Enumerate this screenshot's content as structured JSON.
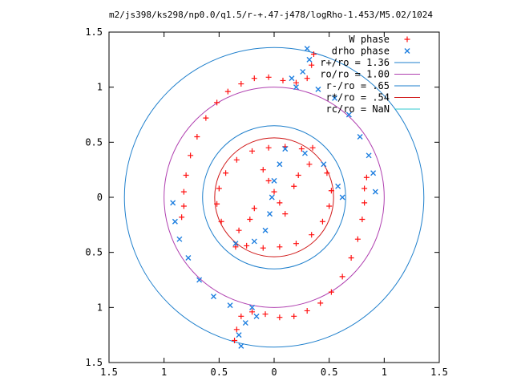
{
  "chart_data": {
    "type": "scatter",
    "title": "m2/js398/ks298/np0.0/q1.5/r-+.47-j478/logRho-1.453/M5.02/1024",
    "xlabel": "",
    "ylabel": "",
    "xlim": [
      -1.5,
      1.5
    ],
    "ylim": [
      -1.5,
      1.5
    ],
    "x_ticks": [
      "1.5",
      "1",
      "0.5",
      "0",
      "0.5",
      "1",
      "1.5"
    ],
    "y_ticks": [
      "1.5",
      "1",
      "0.5",
      "0",
      "0.5",
      "1",
      "1.5"
    ],
    "grid": false,
    "legend_position": "top-right",
    "circles": [
      {
        "name": "r+/ro = 1.36",
        "r": 1.36,
        "color": "#1e7fcc"
      },
      {
        "name": "ro/ro = 1.00",
        "r": 1.0,
        "color": "#b040b0"
      },
      {
        "name": "r-/ro = .65",
        "r": 0.65,
        "color": "#1e7fcc"
      },
      {
        "name": "r*/ro = .54",
        "r": 0.54,
        "color": "#d01818"
      },
      {
        "name": "rc/ro = NaN",
        "r": null,
        "color": "#30c8d0"
      }
    ],
    "series": [
      {
        "name": "W phase",
        "marker": "plus",
        "color": "#ff1010",
        "points": [
          [
            0.36,
            1.3
          ],
          [
            0.34,
            1.2
          ],
          [
            0.3,
            1.08
          ],
          [
            0.2,
            1.04
          ],
          [
            0.08,
            1.06
          ],
          [
            -0.05,
            1.09
          ],
          [
            -0.18,
            1.08
          ],
          [
            -0.3,
            1.03
          ],
          [
            -0.42,
            0.96
          ],
          [
            -0.52,
            0.86
          ],
          [
            -0.62,
            0.72
          ],
          [
            -0.7,
            0.55
          ],
          [
            -0.76,
            0.38
          ],
          [
            -0.8,
            0.2
          ],
          [
            -0.82,
            0.05
          ],
          [
            -0.82,
            -0.08
          ],
          [
            -0.84,
            -0.18
          ],
          [
            -0.36,
            -1.3
          ],
          [
            -0.34,
            -1.2
          ],
          [
            -0.3,
            -1.08
          ],
          [
            -0.2,
            -1.04
          ],
          [
            -0.08,
            -1.06
          ],
          [
            0.05,
            -1.09
          ],
          [
            0.18,
            -1.08
          ],
          [
            0.3,
            -1.03
          ],
          [
            0.42,
            -0.96
          ],
          [
            0.52,
            -0.86
          ],
          [
            0.62,
            -0.72
          ],
          [
            0.7,
            -0.55
          ],
          [
            0.76,
            -0.38
          ],
          [
            0.8,
            -0.2
          ],
          [
            0.82,
            -0.05
          ],
          [
            0.82,
            0.08
          ],
          [
            0.84,
            0.18
          ],
          [
            0.35,
            0.45
          ],
          [
            0.25,
            0.44
          ],
          [
            0.1,
            0.46
          ],
          [
            -0.05,
            0.45
          ],
          [
            -0.2,
            0.42
          ],
          [
            -0.34,
            0.34
          ],
          [
            -0.44,
            0.22
          ],
          [
            -0.5,
            0.08
          ],
          [
            -0.52,
            -0.06
          ],
          [
            -0.48,
            -0.22
          ],
          [
            -0.32,
            -0.3
          ],
          [
            -0.22,
            -0.2
          ],
          [
            -0.18,
            -0.1
          ],
          [
            -0.35,
            -0.45
          ],
          [
            -0.25,
            -0.44
          ],
          [
            -0.1,
            -0.46
          ],
          [
            0.05,
            -0.45
          ],
          [
            0.2,
            -0.42
          ],
          [
            0.34,
            -0.34
          ],
          [
            0.44,
            -0.22
          ],
          [
            0.5,
            -0.08
          ],
          [
            0.52,
            0.06
          ],
          [
            0.48,
            0.22
          ],
          [
            0.32,
            0.3
          ],
          [
            0.22,
            0.2
          ],
          [
            0.18,
            0.1
          ],
          [
            -0.1,
            0.25
          ],
          [
            -0.05,
            0.15
          ],
          [
            0.0,
            0.05
          ],
          [
            0.05,
            -0.05
          ],
          [
            0.1,
            -0.15
          ]
        ]
      },
      {
        "name": "drho phase",
        "marker": "cross",
        "color": "#1e7fe0",
        "points": [
          [
            0.3,
            1.35
          ],
          [
            0.32,
            1.25
          ],
          [
            0.26,
            1.14
          ],
          [
            0.16,
            1.08
          ],
          [
            0.2,
            1.0
          ],
          [
            0.4,
            0.98
          ],
          [
            0.55,
            0.9
          ],
          [
            0.68,
            0.75
          ],
          [
            0.78,
            0.55
          ],
          [
            0.86,
            0.38
          ],
          [
            0.9,
            0.22
          ],
          [
            0.92,
            0.05
          ],
          [
            -0.3,
            -1.35
          ],
          [
            -0.32,
            -1.25
          ],
          [
            -0.26,
            -1.14
          ],
          [
            -0.16,
            -1.08
          ],
          [
            -0.2,
            -1.0
          ],
          [
            -0.4,
            -0.98
          ],
          [
            -0.55,
            -0.9
          ],
          [
            -0.68,
            -0.75
          ],
          [
            -0.78,
            -0.55
          ],
          [
            -0.86,
            -0.38
          ],
          [
            -0.9,
            -0.22
          ],
          [
            -0.92,
            -0.05
          ],
          [
            0.1,
            0.44
          ],
          [
            0.05,
            0.3
          ],
          [
            0.0,
            0.15
          ],
          [
            -0.02,
            0.0
          ],
          [
            -0.04,
            -0.15
          ],
          [
            -0.08,
            -0.3
          ],
          [
            -0.18,
            -0.4
          ],
          [
            -0.35,
            -0.42
          ],
          [
            0.28,
            0.4
          ],
          [
            0.45,
            0.3
          ],
          [
            0.58,
            0.1
          ],
          [
            0.62,
            0.0
          ]
        ]
      }
    ]
  }
}
